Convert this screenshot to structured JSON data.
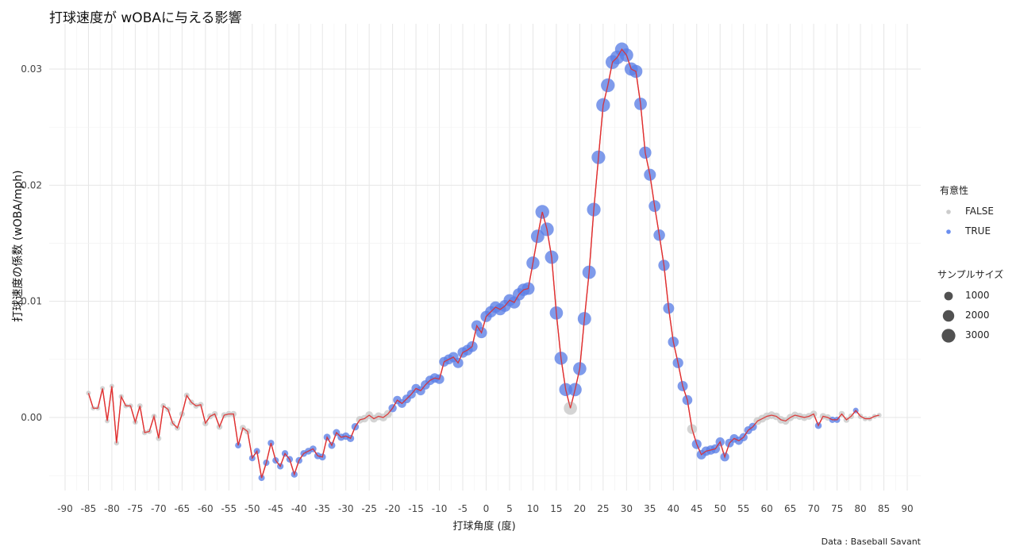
{
  "title": "打球速度が wOBAに与える影響",
  "caption": "Data : Baseball Savant",
  "legend": {
    "sig_title": "有意性",
    "sig_items": [
      {
        "label": "FALSE",
        "color": "#cccccc"
      },
      {
        "label": "TRUE",
        "color": "#6b8ff0"
      }
    ],
    "size_title": "サンプルサイズ",
    "size_items": [
      "1000",
      "2000",
      "3000"
    ]
  },
  "chart_data": {
    "type": "scatter",
    "title": "打球速度が wOBAに与える影響",
    "xlabel": "打球角度 (度)",
    "ylabel": "打球速度の係数 (wOBA/mph)",
    "xlim": [
      -90,
      90
    ],
    "ylim": [
      -0.005,
      0.032
    ],
    "x_ticks": [
      "-90",
      "-85",
      "-80",
      "-75",
      "-70",
      "-65",
      "-60",
      "-55",
      "-50",
      "-45",
      "-40",
      "-35",
      "-30",
      "-25",
      "-20",
      "-15",
      "-10",
      "-5",
      "0",
      "5",
      "10",
      "15",
      "20",
      "25",
      "30",
      "35",
      "40",
      "45",
      "50",
      "55",
      "60",
      "65",
      "70",
      "75",
      "80",
      "85",
      "90"
    ],
    "y_ticks": [
      {
        "value": 0.0,
        "label": "0.00"
      },
      {
        "value": 0.01,
        "label": "0.01"
      },
      {
        "value": 0.02,
        "label": "0.02"
      },
      {
        "value": 0.03,
        "label": "0.03"
      }
    ],
    "line_color": "#e03030",
    "colors": {
      "TRUE": "#5b7fe6",
      "FALSE": "#c8c8c8"
    },
    "grid": true,
    "legend_position": "right",
    "points": [
      {
        "x": -85,
        "y": 0.0021,
        "sig": "FALSE",
        "n": 20
      },
      {
        "x": -84,
        "y": 0.0008,
        "sig": "FALSE",
        "n": 20
      },
      {
        "x": -83,
        "y": 0.0008,
        "sig": "FALSE",
        "n": 20
      },
      {
        "x": -82,
        "y": 0.0025,
        "sig": "FALSE",
        "n": 20
      },
      {
        "x": -81,
        "y": -0.0003,
        "sig": "FALSE",
        "n": 20
      },
      {
        "x": -80,
        "y": 0.0027,
        "sig": "FALSE",
        "n": 20
      },
      {
        "x": -79,
        "y": -0.0022,
        "sig": "FALSE",
        "n": 30
      },
      {
        "x": -78,
        "y": 0.0018,
        "sig": "FALSE",
        "n": 30
      },
      {
        "x": -77,
        "y": 0.001,
        "sig": "FALSE",
        "n": 30
      },
      {
        "x": -76,
        "y": 0.001,
        "sig": "FALSE",
        "n": 30
      },
      {
        "x": -75,
        "y": -0.0004,
        "sig": "FALSE",
        "n": 40
      },
      {
        "x": -74,
        "y": 0.001,
        "sig": "FALSE",
        "n": 40
      },
      {
        "x": -73,
        "y": -0.0013,
        "sig": "FALSE",
        "n": 40
      },
      {
        "x": -72,
        "y": -0.0012,
        "sig": "FALSE",
        "n": 40
      },
      {
        "x": -71,
        "y": 0.0001,
        "sig": "FALSE",
        "n": 40
      },
      {
        "x": -70,
        "y": -0.0018,
        "sig": "FALSE",
        "n": 50
      },
      {
        "x": -69,
        "y": 0.001,
        "sig": "FALSE",
        "n": 50
      },
      {
        "x": -68,
        "y": 0.0007,
        "sig": "FALSE",
        "n": 50
      },
      {
        "x": -67,
        "y": -0.0005,
        "sig": "FALSE",
        "n": 50
      },
      {
        "x": -66,
        "y": -0.0009,
        "sig": "FALSE",
        "n": 50
      },
      {
        "x": -65,
        "y": 0.0003,
        "sig": "FALSE",
        "n": 60
      },
      {
        "x": -64,
        "y": 0.0019,
        "sig": "FALSE",
        "n": 60
      },
      {
        "x": -63,
        "y": 0.0013,
        "sig": "FALSE",
        "n": 60
      },
      {
        "x": -62,
        "y": 0.001,
        "sig": "FALSE",
        "n": 60
      },
      {
        "x": -61,
        "y": 0.0011,
        "sig": "FALSE",
        "n": 60
      },
      {
        "x": -60,
        "y": -0.0005,
        "sig": "FALSE",
        "n": 80
      },
      {
        "x": -59,
        "y": 0.0001,
        "sig": "FALSE",
        "n": 80
      },
      {
        "x": -58,
        "y": 0.0003,
        "sig": "FALSE",
        "n": 80
      },
      {
        "x": -57,
        "y": -0.0008,
        "sig": "FALSE",
        "n": 80
      },
      {
        "x": -56,
        "y": 0.0002,
        "sig": "FALSE",
        "n": 80
      },
      {
        "x": -55,
        "y": 0.0003,
        "sig": "FALSE",
        "n": 90
      },
      {
        "x": -54,
        "y": 0.0003,
        "sig": "FALSE",
        "n": 90
      },
      {
        "x": -53,
        "y": -0.0024,
        "sig": "TRUE",
        "n": 100
      },
      {
        "x": -52,
        "y": -0.0009,
        "sig": "FALSE",
        "n": 100
      },
      {
        "x": -51,
        "y": -0.0012,
        "sig": "FALSE",
        "n": 100
      },
      {
        "x": -50,
        "y": -0.0035,
        "sig": "TRUE",
        "n": 110
      },
      {
        "x": -49,
        "y": -0.0029,
        "sig": "TRUE",
        "n": 110
      },
      {
        "x": -48,
        "y": -0.0052,
        "sig": "TRUE",
        "n": 110
      },
      {
        "x": -47,
        "y": -0.0039,
        "sig": "TRUE",
        "n": 110
      },
      {
        "x": -46,
        "y": -0.0022,
        "sig": "TRUE",
        "n": 120
      },
      {
        "x": -45,
        "y": -0.0037,
        "sig": "TRUE",
        "n": 120
      },
      {
        "x": -44,
        "y": -0.0042,
        "sig": "TRUE",
        "n": 120
      },
      {
        "x": -43,
        "y": -0.0031,
        "sig": "TRUE",
        "n": 130
      },
      {
        "x": -42,
        "y": -0.0036,
        "sig": "TRUE",
        "n": 130
      },
      {
        "x": -41,
        "y": -0.0049,
        "sig": "TRUE",
        "n": 130
      },
      {
        "x": -40,
        "y": -0.0037,
        "sig": "TRUE",
        "n": 140
      },
      {
        "x": -39,
        "y": -0.0031,
        "sig": "TRUE",
        "n": 140
      },
      {
        "x": -38,
        "y": -0.0029,
        "sig": "TRUE",
        "n": 150
      },
      {
        "x": -37,
        "y": -0.0027,
        "sig": "TRUE",
        "n": 150
      },
      {
        "x": -36,
        "y": -0.0033,
        "sig": "TRUE",
        "n": 160
      },
      {
        "x": -35,
        "y": -0.0034,
        "sig": "TRUE",
        "n": 160
      },
      {
        "x": -34,
        "y": -0.0017,
        "sig": "TRUE",
        "n": 170
      },
      {
        "x": -33,
        "y": -0.0024,
        "sig": "TRUE",
        "n": 170
      },
      {
        "x": -32,
        "y": -0.0013,
        "sig": "TRUE",
        "n": 180
      },
      {
        "x": -31,
        "y": -0.0017,
        "sig": "TRUE",
        "n": 190
      },
      {
        "x": -30,
        "y": -0.0016,
        "sig": "TRUE",
        "n": 200
      },
      {
        "x": -29,
        "y": -0.0018,
        "sig": "TRUE",
        "n": 200
      },
      {
        "x": -28,
        "y": -0.0008,
        "sig": "TRUE",
        "n": 210
      },
      {
        "x": -27,
        "y": -0.0002,
        "sig": "FALSE",
        "n": 220
      },
      {
        "x": -26,
        "y": -0.0001,
        "sig": "FALSE",
        "n": 230
      },
      {
        "x": -25,
        "y": 0.0002,
        "sig": "FALSE",
        "n": 240
      },
      {
        "x": -24,
        "y": -0.0001,
        "sig": "FALSE",
        "n": 250
      },
      {
        "x": -23,
        "y": 0.0001,
        "sig": "FALSE",
        "n": 260
      },
      {
        "x": -22,
        "y": 0.0,
        "sig": "FALSE",
        "n": 270
      },
      {
        "x": -21,
        "y": 0.0003,
        "sig": "FALSE",
        "n": 280
      },
      {
        "x": -20,
        "y": 0.0008,
        "sig": "TRUE",
        "n": 300
      },
      {
        "x": -19,
        "y": 0.0015,
        "sig": "TRUE",
        "n": 320
      },
      {
        "x": -18,
        "y": 0.0012,
        "sig": "TRUE",
        "n": 340
      },
      {
        "x": -17,
        "y": 0.0016,
        "sig": "TRUE",
        "n": 360
      },
      {
        "x": -16,
        "y": 0.002,
        "sig": "TRUE",
        "n": 380
      },
      {
        "x": -15,
        "y": 0.0025,
        "sig": "TRUE",
        "n": 400
      },
      {
        "x": -14,
        "y": 0.0023,
        "sig": "TRUE",
        "n": 420
      },
      {
        "x": -13,
        "y": 0.0028,
        "sig": "TRUE",
        "n": 440
      },
      {
        "x": -12,
        "y": 0.0032,
        "sig": "TRUE",
        "n": 460
      },
      {
        "x": -11,
        "y": 0.0034,
        "sig": "TRUE",
        "n": 480
      },
      {
        "x": -10,
        "y": 0.0033,
        "sig": "TRUE",
        "n": 500
      },
      {
        "x": -9,
        "y": 0.0048,
        "sig": "TRUE",
        "n": 530
      },
      {
        "x": -8,
        "y": 0.005,
        "sig": "TRUE",
        "n": 560
      },
      {
        "x": -7,
        "y": 0.0052,
        "sig": "TRUE",
        "n": 590
      },
      {
        "x": -6,
        "y": 0.0047,
        "sig": "TRUE",
        "n": 620
      },
      {
        "x": -5,
        "y": 0.0056,
        "sig": "TRUE",
        "n": 650
      },
      {
        "x": -4,
        "y": 0.0058,
        "sig": "TRUE",
        "n": 680
      },
      {
        "x": -3,
        "y": 0.0061,
        "sig": "TRUE",
        "n": 710
      },
      {
        "x": -2,
        "y": 0.0079,
        "sig": "TRUE",
        "n": 740
      },
      {
        "x": -1,
        "y": 0.0073,
        "sig": "TRUE",
        "n": 770
      },
      {
        "x": 0,
        "y": 0.0087,
        "sig": "TRUE",
        "n": 800
      },
      {
        "x": 1,
        "y": 0.0091,
        "sig": "TRUE",
        "n": 830
      },
      {
        "x": 2,
        "y": 0.0095,
        "sig": "TRUE",
        "n": 860
      },
      {
        "x": 3,
        "y": 0.0093,
        "sig": "TRUE",
        "n": 890
      },
      {
        "x": 4,
        "y": 0.0096,
        "sig": "TRUE",
        "n": 920
      },
      {
        "x": 5,
        "y": 0.0101,
        "sig": "TRUE",
        "n": 950
      },
      {
        "x": 6,
        "y": 0.0099,
        "sig": "TRUE",
        "n": 980
      },
      {
        "x": 7,
        "y": 0.0106,
        "sig": "TRUE",
        "n": 1010
      },
      {
        "x": 8,
        "y": 0.011,
        "sig": "TRUE",
        "n": 1050
      },
      {
        "x": 9,
        "y": 0.0111,
        "sig": "TRUE",
        "n": 1100
      },
      {
        "x": 10,
        "y": 0.0133,
        "sig": "TRUE",
        "n": 1200
      },
      {
        "x": 11,
        "y": 0.0156,
        "sig": "TRUE",
        "n": 1300
      },
      {
        "x": 12,
        "y": 0.0177,
        "sig": "TRUE",
        "n": 1400
      },
      {
        "x": 13,
        "y": 0.0162,
        "sig": "TRUE",
        "n": 1350
      },
      {
        "x": 14,
        "y": 0.0138,
        "sig": "TRUE",
        "n": 1300
      },
      {
        "x": 15,
        "y": 0.009,
        "sig": "TRUE",
        "n": 1250
      },
      {
        "x": 16,
        "y": 0.0051,
        "sig": "TRUE",
        "n": 1200
      },
      {
        "x": 17,
        "y": 0.0024,
        "sig": "TRUE",
        "n": 1200
      },
      {
        "x": 18,
        "y": 0.0008,
        "sig": "FALSE",
        "n": 1250
      },
      {
        "x": 19,
        "y": 0.0024,
        "sig": "TRUE",
        "n": 1250
      },
      {
        "x": 20,
        "y": 0.0042,
        "sig": "TRUE",
        "n": 1250
      },
      {
        "x": 21,
        "y": 0.0085,
        "sig": "TRUE",
        "n": 1300
      },
      {
        "x": 22,
        "y": 0.0125,
        "sig": "TRUE",
        "n": 1300
      },
      {
        "x": 23,
        "y": 0.0179,
        "sig": "TRUE",
        "n": 1350
      },
      {
        "x": 24,
        "y": 0.0224,
        "sig": "TRUE",
        "n": 1350
      },
      {
        "x": 25,
        "y": 0.0269,
        "sig": "TRUE",
        "n": 1400
      },
      {
        "x": 26,
        "y": 0.0286,
        "sig": "TRUE",
        "n": 1400
      },
      {
        "x": 27,
        "y": 0.0306,
        "sig": "TRUE",
        "n": 1400
      },
      {
        "x": 28,
        "y": 0.031,
        "sig": "TRUE",
        "n": 1400
      },
      {
        "x": 29,
        "y": 0.0317,
        "sig": "TRUE",
        "n": 1350
      },
      {
        "x": 30,
        "y": 0.0312,
        "sig": "TRUE",
        "n": 1300
      },
      {
        "x": 31,
        "y": 0.03,
        "sig": "TRUE",
        "n": 1250
      },
      {
        "x": 32,
        "y": 0.0298,
        "sig": "TRUE",
        "n": 1200
      },
      {
        "x": 33,
        "y": 0.027,
        "sig": "TRUE",
        "n": 1100
      },
      {
        "x": 34,
        "y": 0.0228,
        "sig": "TRUE",
        "n": 1000
      },
      {
        "x": 35,
        "y": 0.0209,
        "sig": "TRUE",
        "n": 950
      },
      {
        "x": 36,
        "y": 0.0182,
        "sig": "TRUE",
        "n": 900
      },
      {
        "x": 37,
        "y": 0.0157,
        "sig": "TRUE",
        "n": 850
      },
      {
        "x": 38,
        "y": 0.0131,
        "sig": "TRUE",
        "n": 800
      },
      {
        "x": 39,
        "y": 0.0094,
        "sig": "TRUE",
        "n": 750
      },
      {
        "x": 40,
        "y": 0.0065,
        "sig": "TRUE",
        "n": 700
      },
      {
        "x": 41,
        "y": 0.0047,
        "sig": "TRUE",
        "n": 650
      },
      {
        "x": 42,
        "y": 0.0027,
        "sig": "TRUE",
        "n": 600
      },
      {
        "x": 43,
        "y": 0.0015,
        "sig": "TRUE",
        "n": 560
      },
      {
        "x": 44,
        "y": -0.001,
        "sig": "FALSE",
        "n": 520
      },
      {
        "x": 45,
        "y": -0.0023,
        "sig": "TRUE",
        "n": 500
      },
      {
        "x": 46,
        "y": -0.0032,
        "sig": "TRUE",
        "n": 480
      },
      {
        "x": 47,
        "y": -0.0029,
        "sig": "TRUE",
        "n": 460
      },
      {
        "x": 48,
        "y": -0.0028,
        "sig": "TRUE",
        "n": 440
      },
      {
        "x": 49,
        "y": -0.0027,
        "sig": "TRUE",
        "n": 420
      },
      {
        "x": 50,
        "y": -0.0021,
        "sig": "TRUE",
        "n": 400
      },
      {
        "x": 51,
        "y": -0.0034,
        "sig": "TRUE",
        "n": 380
      },
      {
        "x": 52,
        "y": -0.0022,
        "sig": "TRUE",
        "n": 360
      },
      {
        "x": 53,
        "y": -0.0018,
        "sig": "TRUE",
        "n": 340
      },
      {
        "x": 54,
        "y": -0.002,
        "sig": "TRUE",
        "n": 320
      },
      {
        "x": 55,
        "y": -0.0017,
        "sig": "TRUE",
        "n": 300
      },
      {
        "x": 56,
        "y": -0.0011,
        "sig": "TRUE",
        "n": 290
      },
      {
        "x": 57,
        "y": -0.0008,
        "sig": "TRUE",
        "n": 280
      },
      {
        "x": 58,
        "y": -0.0003,
        "sig": "FALSE",
        "n": 270
      },
      {
        "x": 59,
        "y": -0.0001,
        "sig": "FALSE",
        "n": 260
      },
      {
        "x": 60,
        "y": 0.0001,
        "sig": "FALSE",
        "n": 250
      },
      {
        "x": 61,
        "y": 0.0002,
        "sig": "FALSE",
        "n": 240
      },
      {
        "x": 62,
        "y": 0.0001,
        "sig": "FALSE",
        "n": 230
      },
      {
        "x": 63,
        "y": -0.0002,
        "sig": "FALSE",
        "n": 220
      },
      {
        "x": 64,
        "y": -0.0003,
        "sig": "FALSE",
        "n": 210
      },
      {
        "x": 65,
        "y": 0.0,
        "sig": "FALSE",
        "n": 200
      },
      {
        "x": 66,
        "y": 0.0002,
        "sig": "FALSE",
        "n": 190
      },
      {
        "x": 67,
        "y": 0.0001,
        "sig": "FALSE",
        "n": 180
      },
      {
        "x": 68,
        "y": 0.0,
        "sig": "FALSE",
        "n": 170
      },
      {
        "x": 69,
        "y": 0.0001,
        "sig": "FALSE",
        "n": 160
      },
      {
        "x": 70,
        "y": 0.0003,
        "sig": "FALSE",
        "n": 150
      },
      {
        "x": 71,
        "y": -0.0007,
        "sig": "TRUE",
        "n": 140
      },
      {
        "x": 72,
        "y": 0.0001,
        "sig": "FALSE",
        "n": 130
      },
      {
        "x": 73,
        "y": 0.0,
        "sig": "FALSE",
        "n": 120
      },
      {
        "x": 74,
        "y": -0.0002,
        "sig": "TRUE",
        "n": 110
      },
      {
        "x": 75,
        "y": -0.0002,
        "sig": "TRUE",
        "n": 100
      },
      {
        "x": 76,
        "y": 0.0003,
        "sig": "FALSE",
        "n": 90
      },
      {
        "x": 77,
        "y": -0.0002,
        "sig": "FALSE",
        "n": 80
      },
      {
        "x": 78,
        "y": 0.0001,
        "sig": "FALSE",
        "n": 70
      },
      {
        "x": 79,
        "y": 0.0006,
        "sig": "TRUE",
        "n": 60
      },
      {
        "x": 80,
        "y": 0.0001,
        "sig": "FALSE",
        "n": 50
      },
      {
        "x": 81,
        "y": -0.0001,
        "sig": "FALSE",
        "n": 40
      },
      {
        "x": 82,
        "y": -0.0001,
        "sig": "FALSE",
        "n": 30
      },
      {
        "x": 83,
        "y": 0.0001,
        "sig": "FALSE",
        "n": 25
      },
      {
        "x": 84,
        "y": 0.0002,
        "sig": "FALSE",
        "n": 20
      }
    ]
  }
}
